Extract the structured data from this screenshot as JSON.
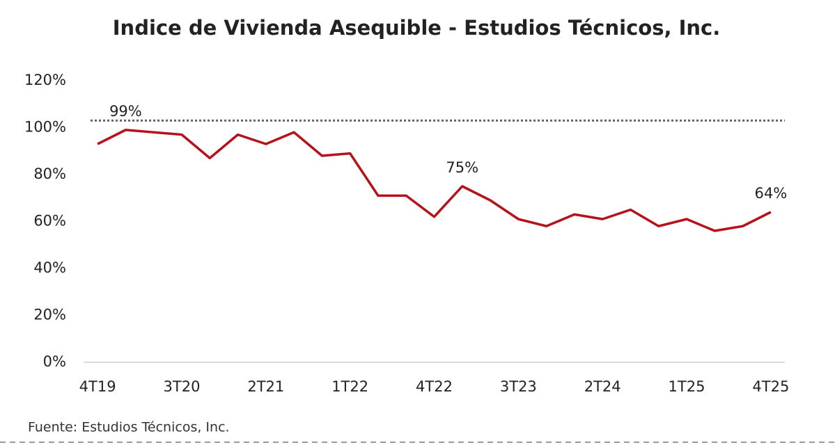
{
  "chart_data": {
    "type": "line",
    "title": "Indice de Vivienda Asequible - Estudios Técnicos, Inc.",
    "source": "Fuente: Estudios Técnicos, Inc.",
    "categories": [
      "4T19",
      null,
      null,
      "3T20",
      null,
      null,
      "2T21",
      null,
      null,
      "1T22",
      null,
      null,
      "4T22",
      null,
      null,
      "3T23",
      null,
      null,
      "2T24",
      null,
      null,
      "1T25",
      null,
      null,
      "4T25"
    ],
    "series": [
      {
        "color": "#b5121b",
        "values": [
          93,
          99,
          98,
          97,
          87,
          97,
          93,
          98,
          88,
          89,
          71,
          71,
          62,
          75,
          69,
          61,
          58,
          63,
          61,
          65,
          58,
          61,
          56,
          58,
          64
        ],
        "value_labels": [
          null,
          "99%",
          null,
          null,
          null,
          null,
          null,
          null,
          null,
          null,
          null,
          null,
          null,
          "75%",
          null,
          null,
          null,
          null,
          null,
          null,
          null,
          null,
          null,
          null,
          "64%"
        ]
      }
    ],
    "reference_line": 103,
    "ylim": [
      0,
      120
    ],
    "yticks": [
      {
        "value": 0,
        "label": "0%"
      },
      {
        "value": 20,
        "label": "20%"
      },
      {
        "value": 40,
        "label": "40%"
      },
      {
        "value": 60,
        "label": "60%"
      },
      {
        "value": 80,
        "label": "80%"
      },
      {
        "value": 100,
        "label": "100%"
      },
      {
        "value": 120,
        "label": "120%"
      }
    ],
    "grid": false
  }
}
